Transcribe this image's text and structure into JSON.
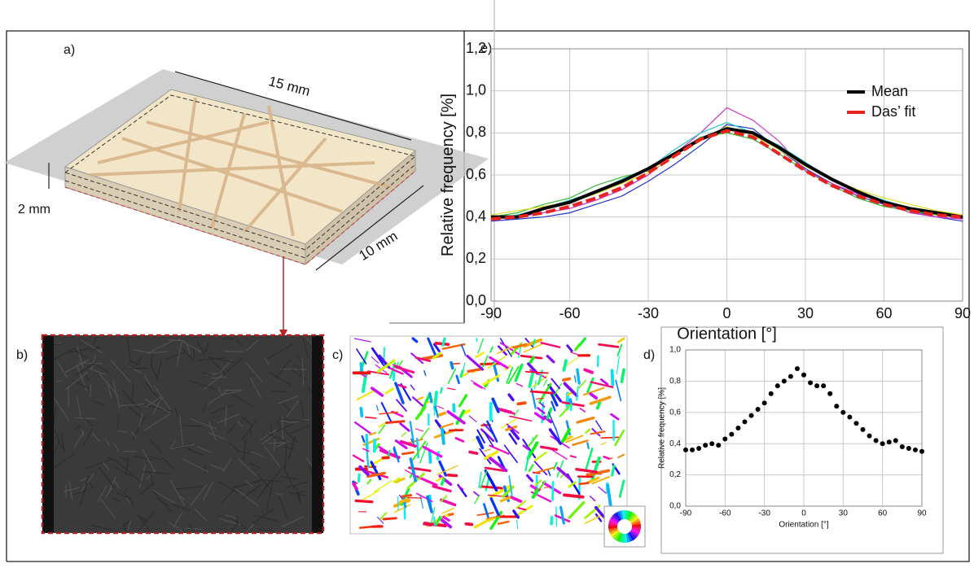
{
  "panels": {
    "a": {
      "label": "a)",
      "length": "15 mm",
      "height": "2 mm",
      "width": "10 mm"
    },
    "b": {
      "label": "b)"
    },
    "c": {
      "label": "c)"
    }
  },
  "chart_data": [
    {
      "type": "line",
      "label": "e)",
      "x_label": "Orientation [°]",
      "y_label": "Relative frequency [%]",
      "x": [
        -90,
        -80,
        -70,
        -60,
        -50,
        -40,
        -30,
        -20,
        -10,
        0,
        10,
        20,
        30,
        40,
        50,
        60,
        70,
        80,
        90
      ],
      "series": [
        {
          "color": "#2233cc",
          "values": [
            0.38,
            0.39,
            0.4,
            0.42,
            0.46,
            0.5,
            0.57,
            0.65,
            0.74,
            0.84,
            0.82,
            0.72,
            0.63,
            0.56,
            0.5,
            0.46,
            0.43,
            0.4,
            0.38
          ]
        },
        {
          "color": "#33bb33",
          "values": [
            0.4,
            0.42,
            0.46,
            0.49,
            0.55,
            0.59,
            0.62,
            0.7,
            0.78,
            0.8,
            0.77,
            0.7,
            0.62,
            0.55,
            0.49,
            0.45,
            0.43,
            0.41,
            0.4
          ]
        },
        {
          "color": "#cc33cc",
          "values": [
            0.4,
            0.4,
            0.42,
            0.44,
            0.48,
            0.53,
            0.6,
            0.7,
            0.8,
            0.92,
            0.86,
            0.76,
            0.62,
            0.56,
            0.51,
            0.47,
            0.42,
            0.4,
            0.39
          ]
        },
        {
          "color": "#22cccc",
          "values": [
            0.39,
            0.41,
            0.44,
            0.48,
            0.52,
            0.58,
            0.63,
            0.72,
            0.8,
            0.85,
            0.8,
            0.74,
            0.66,
            0.58,
            0.52,
            0.48,
            0.44,
            0.42,
            0.4
          ]
        },
        {
          "color": "#dddd22",
          "values": [
            0.41,
            0.43,
            0.45,
            0.47,
            0.51,
            0.56,
            0.61,
            0.69,
            0.77,
            0.83,
            0.79,
            0.72,
            0.64,
            0.58,
            0.53,
            0.49,
            0.46,
            0.43,
            0.41
          ]
        },
        {
          "name": "Mean",
          "color": "#000000",
          "values": [
            0.4,
            0.4,
            0.44,
            0.47,
            0.52,
            0.57,
            0.63,
            0.7,
            0.77,
            0.82,
            0.8,
            0.73,
            0.65,
            0.58,
            0.52,
            0.47,
            0.44,
            0.42,
            0.4
          ]
        },
        {
          "name": "Das’ fit",
          "color": "#e8231f",
          "dash": true,
          "values": [
            0.39,
            0.4,
            0.42,
            0.45,
            0.49,
            0.54,
            0.61,
            0.69,
            0.77,
            0.81,
            0.78,
            0.7,
            0.62,
            0.55,
            0.5,
            0.46,
            0.43,
            0.41,
            0.4
          ]
        }
      ],
      "xlim": [
        -90,
        90
      ],
      "xticks": [
        -90,
        -60,
        -30,
        0,
        30,
        60,
        90
      ],
      "ylim": [
        0,
        1.2
      ],
      "yticks": [
        {
          "value": 0,
          "label": "0,0"
        },
        {
          "value": 0.2,
          "label": "0,2"
        },
        {
          "value": 0.4,
          "label": "0,4"
        },
        {
          "value": 0.6,
          "label": "0,6"
        },
        {
          "value": 0.8,
          "label": "0,8"
        },
        {
          "value": 1.0,
          "label": "1,0"
        },
        {
          "value": 1.2,
          "label": "1,2"
        }
      ],
      "grid": true,
      "legend": "upper right"
    },
    {
      "type": "scatter",
      "label": "d)",
      "x_label": "Orientation [°]",
      "y_label": "Relative frequency [%]",
      "color": "#000000",
      "x": [
        -90,
        -85,
        -80,
        -75,
        -70,
        -65,
        -60,
        -55,
        -50,
        -45,
        -40,
        -35,
        -30,
        -25,
        -20,
        -15,
        -10,
        -5,
        0,
        5,
        10,
        15,
        20,
        25,
        30,
        35,
        40,
        45,
        50,
        55,
        60,
        65,
        70,
        75,
        80,
        85,
        90
      ],
      "values": [
        0.36,
        0.36,
        0.37,
        0.39,
        0.4,
        0.39,
        0.43,
        0.46,
        0.5,
        0.54,
        0.58,
        0.62,
        0.66,
        0.72,
        0.77,
        0.8,
        0.83,
        0.88,
        0.84,
        0.79,
        0.77,
        0.77,
        0.72,
        0.64,
        0.6,
        0.57,
        0.53,
        0.49,
        0.45,
        0.42,
        0.4,
        0.41,
        0.42,
        0.38,
        0.37,
        0.36,
        0.35
      ],
      "xlim": [
        -90,
        90
      ],
      "xticks": [
        -90,
        -60,
        -30,
        0,
        30,
        60,
        90
      ],
      "ylim": [
        0,
        1.0
      ],
      "yticks": [
        {
          "value": 0,
          "label": "0,0"
        },
        {
          "value": 0.2,
          "label": "0,2"
        },
        {
          "value": 0.4,
          "label": "0,4"
        },
        {
          "value": 0.6,
          "label": "0,6"
        },
        {
          "value": 0.8,
          "label": "0,8"
        },
        {
          "value": 1.0,
          "label": "1,0"
        }
      ],
      "grid": true
    }
  ]
}
